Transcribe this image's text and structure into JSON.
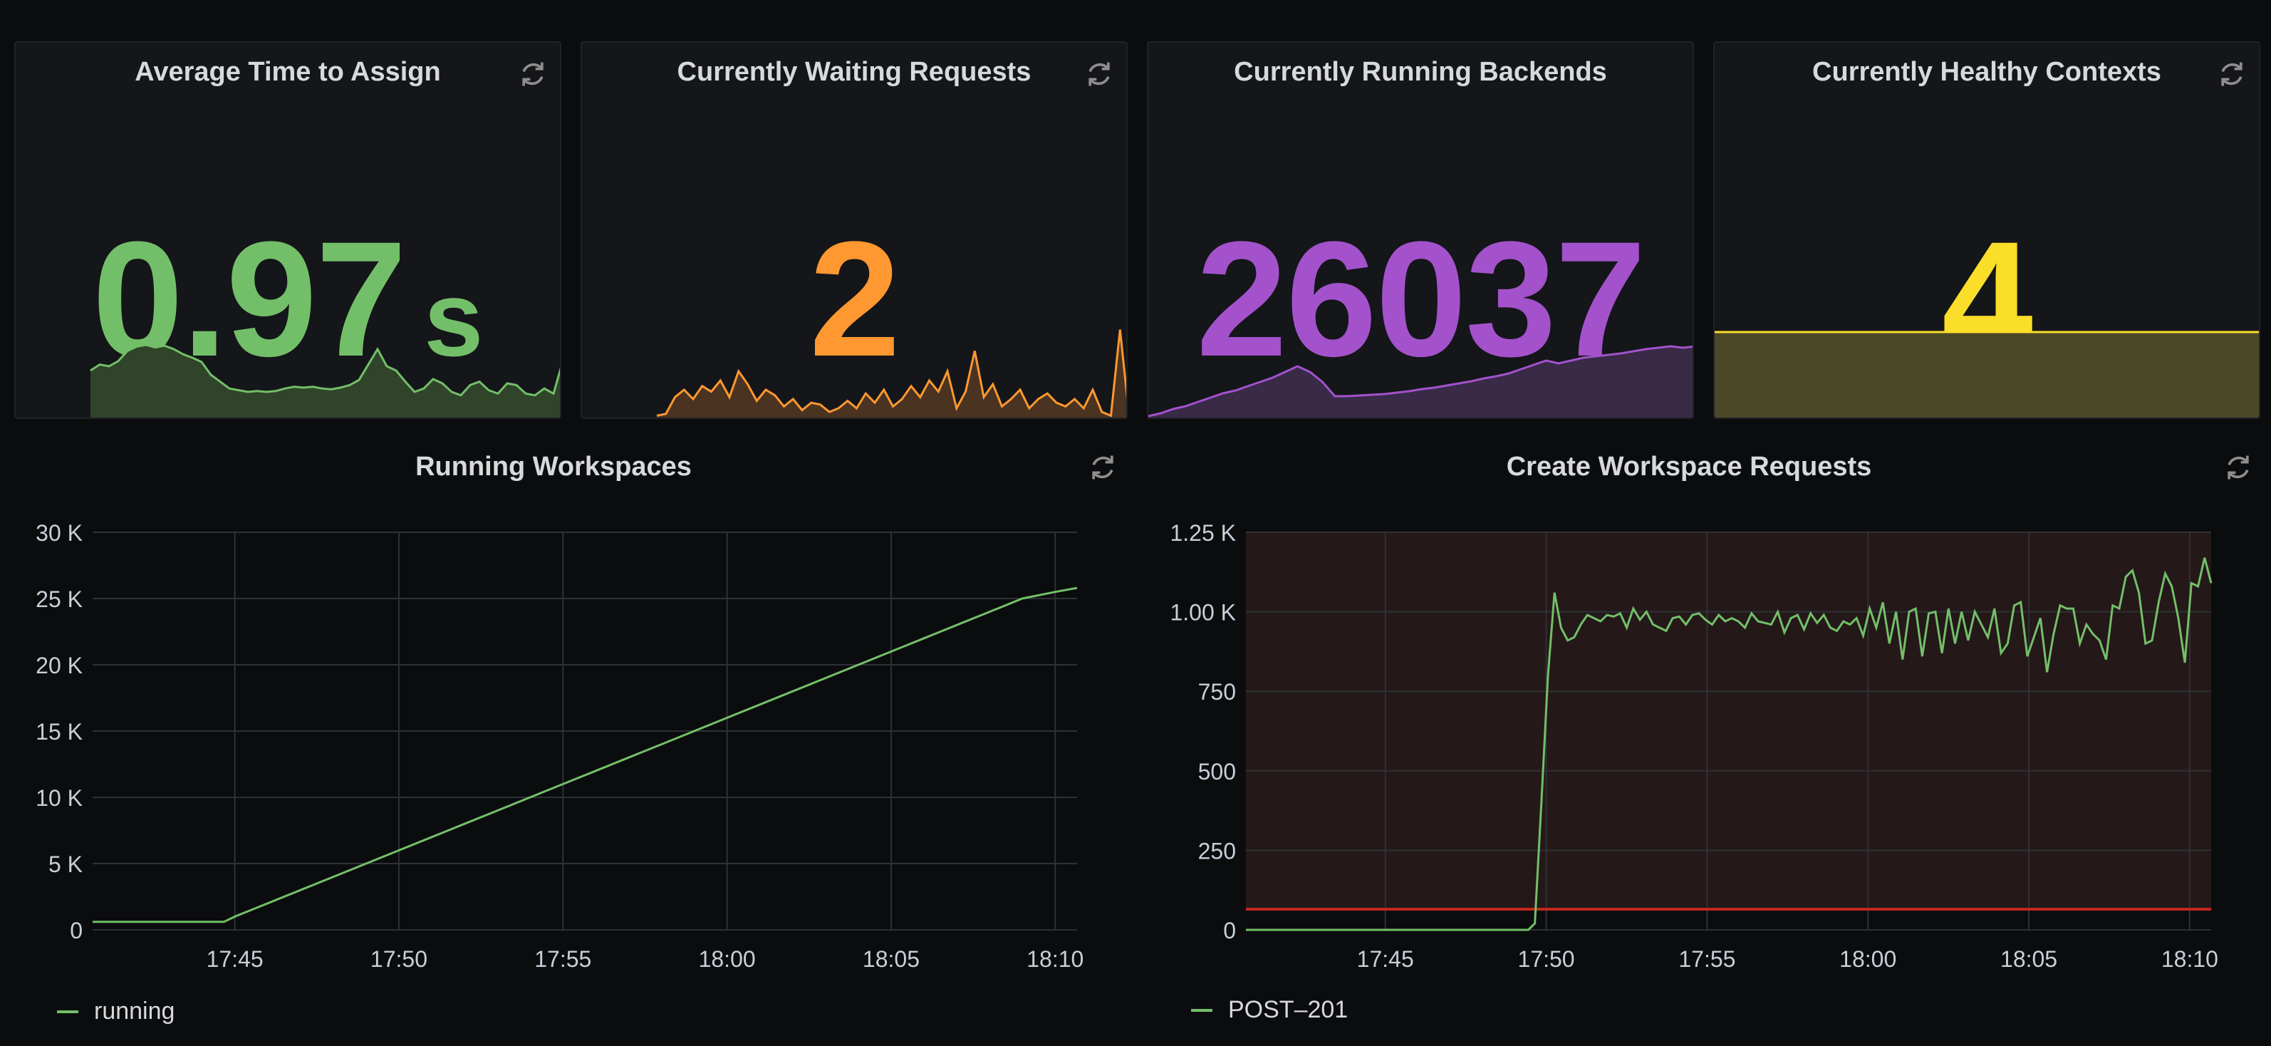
{
  "stats": [
    {
      "title": "Average Time to Assign",
      "value": "0.97",
      "unit": "s",
      "color": "#73bf69",
      "fill": "#2f4429",
      "spark": [
        0.55,
        0.62,
        0.6,
        0.66,
        0.78,
        0.83,
        0.85,
        0.82,
        0.84,
        0.8,
        0.74,
        0.7,
        0.65,
        0.5,
        0.42,
        0.34,
        0.32,
        0.3,
        0.31,
        0.3,
        0.31,
        0.34,
        0.36,
        0.35,
        0.36,
        0.34,
        0.33,
        0.35,
        0.38,
        0.44,
        0.62,
        0.8,
        0.6,
        0.55,
        0.42,
        0.3,
        0.34,
        0.45,
        0.4,
        0.3,
        0.26,
        0.38,
        0.42,
        0.32,
        0.28,
        0.4,
        0.38,
        0.28,
        0.26,
        0.34,
        0.28,
        0.66
      ]
    },
    {
      "title": "Currently Waiting Requests",
      "value": "2",
      "unit": "",
      "color": "#ff9830",
      "fill": "#4a3320",
      "spark": [
        0.02,
        0.04,
        0.22,
        0.3,
        0.2,
        0.34,
        0.28,
        0.4,
        0.22,
        0.5,
        0.36,
        0.18,
        0.3,
        0.24,
        0.12,
        0.2,
        0.08,
        0.16,
        0.14,
        0.06,
        0.1,
        0.18,
        0.1,
        0.26,
        0.16,
        0.3,
        0.12,
        0.2,
        0.34,
        0.22,
        0.4,
        0.28,
        0.5,
        0.1,
        0.28,
        0.72,
        0.22,
        0.36,
        0.12,
        0.2,
        0.3,
        0.1,
        0.2,
        0.26,
        0.16,
        0.12,
        0.2,
        0.1,
        0.3,
        0.06,
        0.02,
        0.95,
        0.02
      ]
    },
    {
      "title": "Currently Running Backends",
      "value": "26037",
      "unit": "",
      "color": "#a352cc",
      "fill": "#392a48",
      "spark": [
        0.02,
        0.06,
        0.12,
        0.16,
        0.22,
        0.28,
        0.34,
        0.38,
        0.44,
        0.5,
        0.56,
        0.64,
        0.72,
        0.64,
        0.5,
        0.3,
        0.3,
        0.31,
        0.32,
        0.33,
        0.35,
        0.37,
        0.4,
        0.42,
        0.45,
        0.48,
        0.51,
        0.55,
        0.58,
        0.62,
        0.68,
        0.74,
        0.8,
        0.76,
        0.8,
        0.84,
        0.86,
        0.88,
        0.9,
        0.93,
        0.96,
        0.98,
        1.0,
        0.98,
        1.0
      ]
    },
    {
      "title": "Currently Healthy Contexts",
      "value": "4",
      "unit": "",
      "color": "#fade2a",
      "fill": "#4b4828",
      "spark": [
        1,
        1
      ]
    }
  ],
  "chart_data": [
    {
      "type": "line",
      "title": "Running Workspaces",
      "xlabel": "",
      "ylabel": "",
      "x_ticks": [
        "17:45",
        "17:50",
        "17:55",
        "18:00",
        "18:05",
        "18:10"
      ],
      "y_ticks": [
        "0",
        "5 K",
        "10 K",
        "15 K",
        "20 K",
        "25 K",
        "30 K"
      ],
      "ylim": [
        0,
        30000
      ],
      "series": [
        {
          "name": "running",
          "color": "#73bf69",
          "x": [
            "17:40:40",
            "17:41",
            "17:42",
            "17:43",
            "17:44",
            "17:44:40",
            "17:45",
            "17:46",
            "17:47",
            "17:48",
            "17:49",
            "17:50",
            "17:51",
            "17:52",
            "17:53",
            "17:54",
            "17:55",
            "17:56",
            "17:57",
            "17:58",
            "17:59",
            "18:00",
            "18:01",
            "18:02",
            "18:03",
            "18:04",
            "18:05",
            "18:06",
            "18:07",
            "18:08",
            "18:09",
            "18:10",
            "18:10:40"
          ],
          "values": [
            600,
            600,
            600,
            600,
            600,
            600,
            1000,
            2000,
            3000,
            4000,
            5000,
            6000,
            7000,
            8000,
            9000,
            10000,
            11000,
            12000,
            13000,
            14000,
            15000,
            16000,
            17000,
            18000,
            19000,
            20000,
            21000,
            22000,
            23000,
            24000,
            25000,
            25500,
            25800
          ]
        }
      ],
      "grid": true,
      "legend": "bottom-left"
    },
    {
      "type": "line",
      "title": "Create Workspace Requests",
      "xlabel": "",
      "ylabel": "",
      "x_ticks": [
        "17:45",
        "17:50",
        "17:55",
        "18:00",
        "18:05",
        "18:10"
      ],
      "y_ticks": [
        "0",
        "250",
        "500",
        "750",
        "1.00 K",
        "1.25 K"
      ],
      "ylim": [
        0,
        1250
      ],
      "threshold": 65,
      "threshold_color": "#c4271f",
      "series": [
        {
          "name": "POST–201",
          "color": "#73bf69",
          "values": [
            0,
            0,
            0,
            0,
            0,
            0,
            0,
            0,
            0,
            0,
            0,
            0,
            0,
            0,
            0,
            0,
            0,
            0,
            0,
            0,
            0,
            0,
            0,
            0,
            0,
            0,
            0,
            0,
            0,
            0,
            0,
            0,
            0,
            0,
            0,
            0,
            0,
            0,
            0,
            0,
            0,
            0,
            0,
            0,
            20,
            400,
            800,
            1060,
            950,
            910,
            920,
            960,
            990,
            980,
            970,
            990,
            985,
            995,
            950,
            1010,
            975,
            1000,
            960,
            950,
            940,
            980,
            985,
            960,
            990,
            995,
            975,
            960,
            990,
            970,
            980,
            970,
            950,
            995,
            970,
            965,
            960,
            1000,
            935,
            980,
            990,
            945,
            995,
            965,
            990,
            950,
            940,
            970,
            960,
            980,
            925,
            1010,
            950,
            1030,
            900,
            1000,
            850,
            1000,
            1010,
            860,
            995,
            1000,
            870,
            1010,
            900,
            1000,
            910,
            1000,
            960,
            920,
            1010,
            870,
            900,
            1020,
            1030,
            860,
            920,
            980,
            810,
            930,
            1020,
            1010,
            1010,
            900,
            960,
            930,
            910,
            850,
            1020,
            1010,
            1110,
            1130,
            1060,
            900,
            910,
            1030,
            1120,
            1080,
            980,
            840,
            1090,
            1080,
            1170,
            1090
          ]
        }
      ],
      "grid": true,
      "legend": "bottom-left"
    }
  ]
}
